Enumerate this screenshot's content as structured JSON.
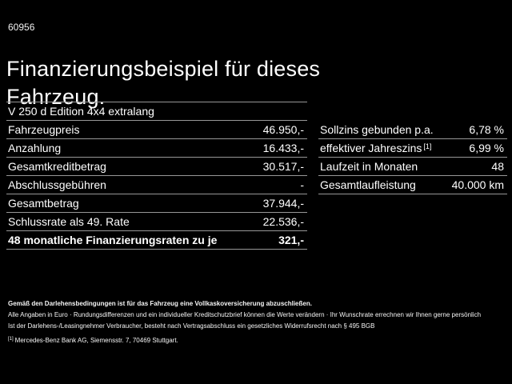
{
  "ref_number": "60956",
  "title": "Finanzierungsbeispiel für dieses Fahrzeug.",
  "vehicle_model": "V 250 d Edition 4x4 extralang",
  "left_table": {
    "rows": [
      {
        "label": "Fahrzeugpreis",
        "value": "46.950,-"
      },
      {
        "label": "Anzahlung",
        "value": "16.433,-"
      },
      {
        "label": "Gesamtkreditbetrag",
        "value": "30.517,-"
      },
      {
        "label": "Abschlussgebühren",
        "value": "-"
      },
      {
        "label": "Gesamtbetrag",
        "value": "37.944,-"
      },
      {
        "label": "Schlussrate als 49. Rate",
        "value": "22.536,-"
      },
      {
        "label": "48 monatliche Finanzierungsraten zu je",
        "value": "321,-",
        "emphasis": true
      }
    ]
  },
  "right_table": {
    "rows": [
      {
        "label": "Sollzins gebunden p.a.",
        "value": "6,78 %"
      },
      {
        "label": "effektiver Jahreszins",
        "sup": "[1]",
        "value": "6,99 %"
      },
      {
        "label": "Laufzeit in Monaten",
        "value": "48"
      },
      {
        "label": "Gesamtlaufleistung",
        "value": "40.000 km"
      }
    ]
  },
  "footer": {
    "line1": "Gemäß den Darlehensbedingungen ist für das Fahrzeug eine Vollkaskoversicherung abzuschließen.",
    "line2": "Alle Angaben in Euro · Rundungsdifferenzen und ein individueller Kreditschutzbrief können die Werte verändern · Ihr Wunschrate errechnen wir Ihnen gerne persönlich",
    "line3": "Ist der Darlehens-/Leasingnehmer Verbraucher, besteht nach Vertragsabschluss ein gesetzliches Widerrufsrecht nach § 495 BGB",
    "footnote_marker": "[1]",
    "footnote_text": "Mercedes-Benz Bank AG, Siemensstr. 7, 70469 Stuttgart."
  },
  "colors": {
    "background": "#000000",
    "text": "#ffffff",
    "divider": "#979797"
  }
}
